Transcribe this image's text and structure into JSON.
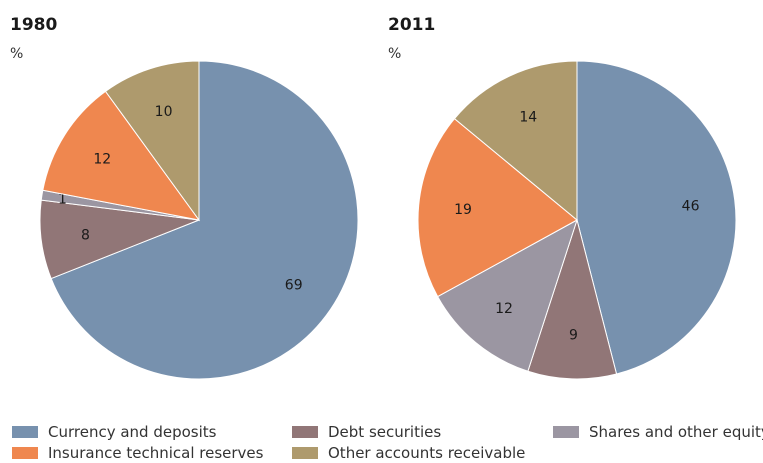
{
  "colors": {
    "currency_deposits": "#7791ae",
    "debt_securities": "#917677",
    "shares_equity": "#9b96a2",
    "insurance_reserves": "#ef874f",
    "other_receivable": "#ae9a6d"
  },
  "chart_data": [
    {
      "type": "pie",
      "title": "1980",
      "unit_label": "%",
      "slices": [
        {
          "key": "currency_deposits",
          "label": "Currency and deposits",
          "value": 69
        },
        {
          "key": "debt_securities",
          "label": "Debt securities",
          "value": 8
        },
        {
          "key": "shares_equity",
          "label": "Shares and other equity",
          "value": 1
        },
        {
          "key": "insurance_reserves",
          "label": "Insurance technical reserves",
          "value": 12
        },
        {
          "key": "other_receivable",
          "label": "Other accounts receivable",
          "value": 10
        }
      ]
    },
    {
      "type": "pie",
      "title": "2011",
      "unit_label": "%",
      "slices": [
        {
          "key": "currency_deposits",
          "label": "Currency and deposits",
          "value": 46
        },
        {
          "key": "debt_securities",
          "label": "Debt securities",
          "value": 9
        },
        {
          "key": "shares_equity",
          "label": "Shares and other equity",
          "value": 12
        },
        {
          "key": "insurance_reserves",
          "label": "Insurance technical reserves",
          "value": 19
        },
        {
          "key": "other_receivable",
          "label": "Other accounts receivable",
          "value": 14
        }
      ]
    }
  ],
  "legend": {
    "items": [
      {
        "key": "currency_deposits",
        "label": "Currency and deposits"
      },
      {
        "key": "debt_securities",
        "label": "Debt securities"
      },
      {
        "key": "shares_equity",
        "label": "Shares and other equity"
      },
      {
        "key": "insurance_reserves",
        "label": "Insurance technical reserves"
      },
      {
        "key": "other_receivable",
        "label": "Other accounts receivable"
      }
    ]
  }
}
